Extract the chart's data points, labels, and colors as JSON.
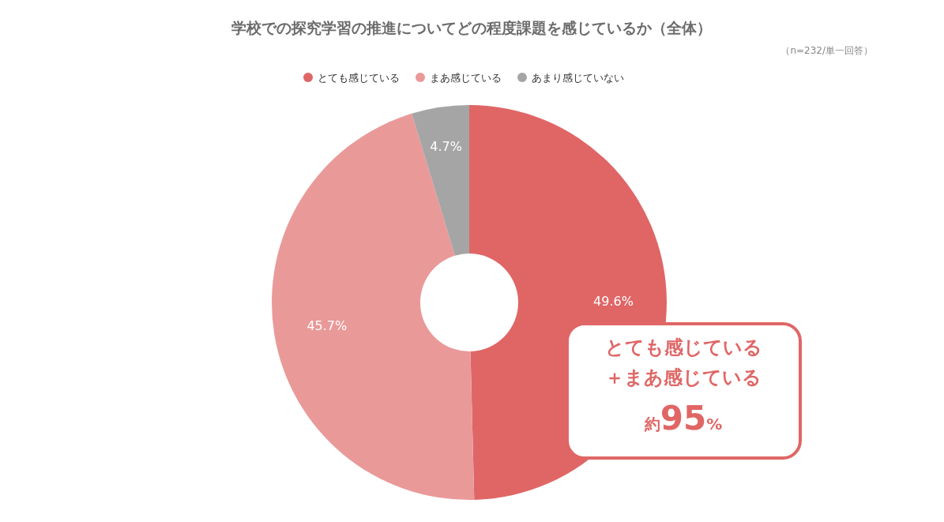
{
  "chart_data": {
    "type": "donut",
    "title": "学校での探究学習の推進についてどの程度課題を感じているか（全体）",
    "subtitle": "（n=232/単一回答）",
    "categories": [
      "とても感じている",
      "まあ感じている",
      "あまり感じていない"
    ],
    "values": [
      49.6,
      45.7,
      4.7
    ],
    "value_labels": [
      "49.6%",
      "45.7%",
      "4.7%"
    ],
    "colors": [
      "#e06666",
      "#ea9999",
      "#a5a5a5"
    ],
    "legend": "top",
    "annotations": [
      "とても感じている",
      "＋まあ感じている",
      "約95%"
    ]
  }
}
